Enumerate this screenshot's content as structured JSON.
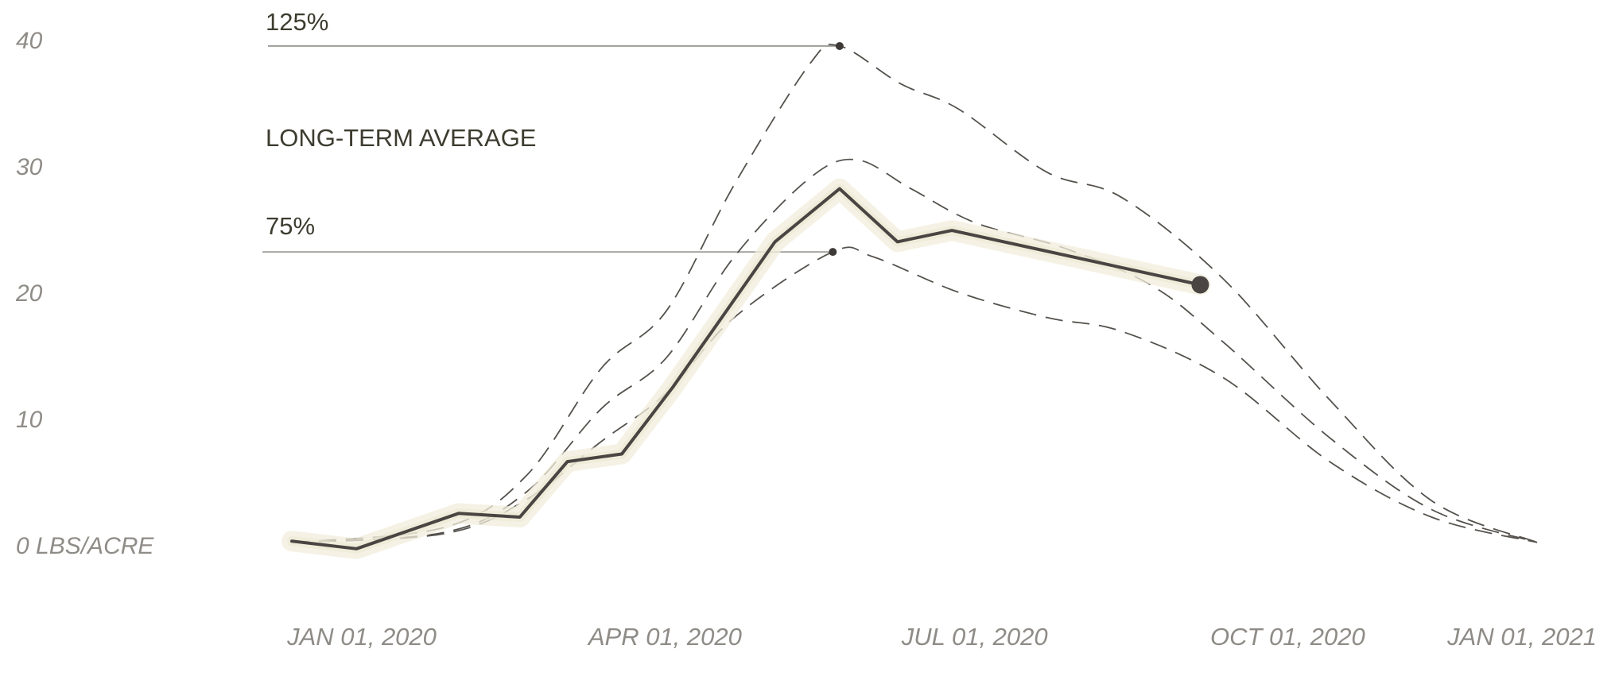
{
  "chart_data": {
    "type": "line",
    "title": "",
    "xlabel": "",
    "ylabel": "",
    "y_unit_label": "0 LBS/ACRE",
    "ylim": [
      0,
      40
    ],
    "xlim": [
      "2020-01-01",
      "2021-01-01"
    ],
    "y_ticks": [
      {
        "value": 0,
        "label": "0 LBS/ACRE"
      },
      {
        "value": 10,
        "label": "10"
      },
      {
        "value": 20,
        "label": "20"
      },
      {
        "value": 30,
        "label": "30"
      },
      {
        "value": 40,
        "label": "40"
      }
    ],
    "x_ticks": [
      {
        "value": "2020-01-01",
        "label": "JAN 01, 2020"
      },
      {
        "value": "2020-04-01",
        "label": "APR 01, 2020"
      },
      {
        "value": "2020-07-01",
        "label": "JUL 01, 2020"
      },
      {
        "value": "2020-10-01",
        "label": "OCT 01, 2020"
      },
      {
        "value": "2021-01-01",
        "label": "JAN 01, 2021"
      }
    ],
    "grid": false,
    "legend": "none",
    "annotations": [
      {
        "label": "125%",
        "x": "2020-06-10",
        "y": 39.5,
        "series": "125%"
      },
      {
        "label": "LONG-TERM AVERAGE"
      },
      {
        "label": "75%",
        "x": "2020-06-08",
        "y": 23.2,
        "series": "75%"
      }
    ],
    "series": [
      {
        "style": "solid",
        "color": "#4a4542",
        "points": [
          {
            "x": "2020-01-01",
            "y": 0.3
          },
          {
            "x": "2020-01-20",
            "y": -0.3
          },
          {
            "x": "2020-02-19",
            "y": 2.5
          },
          {
            "x": "2020-03-08",
            "y": 2.2
          },
          {
            "x": "2020-03-22",
            "y": 6.6
          },
          {
            "x": "2020-04-07",
            "y": 7.2
          },
          {
            "x": "2020-04-22",
            "y": 12.5
          },
          {
            "x": "2020-05-22",
            "y": 24.0
          },
          {
            "x": "2020-06-10",
            "y": 28.2
          },
          {
            "x": "2020-06-27",
            "y": 24.0
          },
          {
            "x": "2020-07-13",
            "y": 24.9
          },
          {
            "x": "2020-09-24",
            "y": 20.6
          }
        ],
        "end_marker": {
          "x": "2020-09-24",
          "y": 20.6
        }
      },
      {
        "name": "125%",
        "style": "dashed",
        "points": [
          {
            "x": "2020-01-01",
            "y": 0.2
          },
          {
            "x": "2020-02-15",
            "y": 1.4
          },
          {
            "x": "2020-03-10",
            "y": 5.5
          },
          {
            "x": "2020-04-01",
            "y": 14.0
          },
          {
            "x": "2020-04-20",
            "y": 18.5
          },
          {
            "x": "2020-05-10",
            "y": 28.5
          },
          {
            "x": "2020-06-01",
            "y": 38.0
          },
          {
            "x": "2020-06-10",
            "y": 39.5
          },
          {
            "x": "2020-06-28",
            "y": 36.5
          },
          {
            "x": "2020-07-15",
            "y": 34.5
          },
          {
            "x": "2020-08-10",
            "y": 29.5
          },
          {
            "x": "2020-09-01",
            "y": 27.5
          },
          {
            "x": "2020-10-01",
            "y": 21.0
          },
          {
            "x": "2020-11-01",
            "y": 11.5
          },
          {
            "x": "2020-12-01",
            "y": 3.5
          },
          {
            "x": "2021-01-01",
            "y": 0.2
          }
        ]
      },
      {
        "name": "LONG-TERM AVERAGE",
        "style": "dashed",
        "points": [
          {
            "x": "2020-01-01",
            "y": 0.2
          },
          {
            "x": "2020-02-15",
            "y": 1.0
          },
          {
            "x": "2020-03-10",
            "y": 4.2
          },
          {
            "x": "2020-04-01",
            "y": 10.8
          },
          {
            "x": "2020-04-20",
            "y": 14.8
          },
          {
            "x": "2020-05-10",
            "y": 22.8
          },
          {
            "x": "2020-06-01",
            "y": 29.0
          },
          {
            "x": "2020-06-15",
            "y": 30.5
          },
          {
            "x": "2020-07-01",
            "y": 28.2
          },
          {
            "x": "2020-07-20",
            "y": 25.5
          },
          {
            "x": "2020-08-15",
            "y": 23.5
          },
          {
            "x": "2020-09-10",
            "y": 20.5
          },
          {
            "x": "2020-10-01",
            "y": 16.0
          },
          {
            "x": "2020-11-01",
            "y": 8.5
          },
          {
            "x": "2020-12-01",
            "y": 2.8
          },
          {
            "x": "2021-01-01",
            "y": 0.2
          }
        ]
      },
      {
        "name": "75%",
        "style": "dashed",
        "points": [
          {
            "x": "2020-01-01",
            "y": 0.2
          },
          {
            "x": "2020-02-15",
            "y": 0.9
          },
          {
            "x": "2020-03-10",
            "y": 3.6
          },
          {
            "x": "2020-04-01",
            "y": 8.2
          },
          {
            "x": "2020-04-20",
            "y": 12.0
          },
          {
            "x": "2020-05-10",
            "y": 18.0
          },
          {
            "x": "2020-06-08",
            "y": 23.2
          },
          {
            "x": "2020-06-20",
            "y": 22.8
          },
          {
            "x": "2020-07-15",
            "y": 20.0
          },
          {
            "x": "2020-08-10",
            "y": 18.0
          },
          {
            "x": "2020-09-01",
            "y": 16.9
          },
          {
            "x": "2020-10-01",
            "y": 13.2
          },
          {
            "x": "2020-11-01",
            "y": 6.6
          },
          {
            "x": "2020-12-01",
            "y": 2.2
          },
          {
            "x": "2021-01-01",
            "y": 0.2
          }
        ]
      }
    ]
  }
}
